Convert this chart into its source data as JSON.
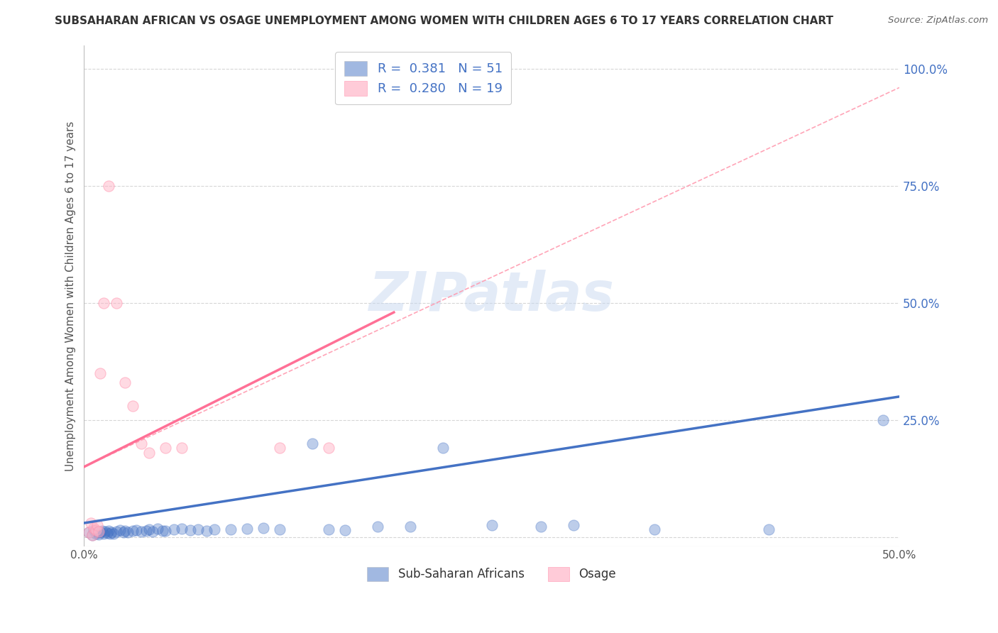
{
  "title": "SUBSAHARAN AFRICAN VS OSAGE UNEMPLOYMENT AMONG WOMEN WITH CHILDREN AGES 6 TO 17 YEARS CORRELATION CHART",
  "source": "Source: ZipAtlas.com",
  "ylabel": "Unemployment Among Women with Children Ages 6 to 17 years",
  "xlim": [
    0.0,
    0.5
  ],
  "ylim": [
    -0.02,
    1.05
  ],
  "xticks": [
    0.0,
    0.1,
    0.2,
    0.3,
    0.4,
    0.5
  ],
  "xticklabels": [
    "0.0%",
    "",
    "",
    "",
    "",
    "50.0%"
  ],
  "yticks": [
    0.0,
    0.25,
    0.5,
    0.75,
    1.0
  ],
  "yticklabels": [
    "",
    "25.0%",
    "50.0%",
    "75.0%",
    "100.0%"
  ],
  "watermark": "ZIPatlas",
  "legend_v1": "0.381",
  "legend_nv1": "51",
  "legend_v2": "0.280",
  "legend_nv2": "19",
  "blue_color": "#4472C4",
  "pink_color": "#FFB6C8",
  "pink_edge_color": "#FF8FAB",
  "pink_line_color": "#FF7096",
  "blue_line_color": "#4472C4",
  "dash_line_color": "#FF9BB0",
  "grid_color": "#CCCCCC",
  "title_color": "#333333",
  "axis_label_color": "#555555",
  "legend_text_color": "#4472C4",
  "blue_scatter": [
    [
      0.003,
      0.01
    ],
    [
      0.005,
      0.005
    ],
    [
      0.006,
      0.015
    ],
    [
      0.007,
      0.008
    ],
    [
      0.008,
      0.012
    ],
    [
      0.009,
      0.006
    ],
    [
      0.01,
      0.01
    ],
    [
      0.011,
      0.014
    ],
    [
      0.012,
      0.007
    ],
    [
      0.013,
      0.012
    ],
    [
      0.014,
      0.009
    ],
    [
      0.015,
      0.013
    ],
    [
      0.016,
      0.007
    ],
    [
      0.017,
      0.011
    ],
    [
      0.018,
      0.008
    ],
    [
      0.02,
      0.012
    ],
    [
      0.022,
      0.015
    ],
    [
      0.024,
      0.01
    ],
    [
      0.025,
      0.013
    ],
    [
      0.027,
      0.011
    ],
    [
      0.03,
      0.013
    ],
    [
      0.032,
      0.015
    ],
    [
      0.035,
      0.012
    ],
    [
      0.038,
      0.014
    ],
    [
      0.04,
      0.016
    ],
    [
      0.042,
      0.012
    ],
    [
      0.045,
      0.018
    ],
    [
      0.048,
      0.014
    ],
    [
      0.05,
      0.013
    ],
    [
      0.055,
      0.016
    ],
    [
      0.06,
      0.018
    ],
    [
      0.065,
      0.015
    ],
    [
      0.07,
      0.016
    ],
    [
      0.075,
      0.014
    ],
    [
      0.08,
      0.017
    ],
    [
      0.09,
      0.016
    ],
    [
      0.1,
      0.018
    ],
    [
      0.11,
      0.019
    ],
    [
      0.12,
      0.016
    ],
    [
      0.14,
      0.2
    ],
    [
      0.15,
      0.016
    ],
    [
      0.16,
      0.015
    ],
    [
      0.18,
      0.022
    ],
    [
      0.2,
      0.022
    ],
    [
      0.22,
      0.19
    ],
    [
      0.25,
      0.025
    ],
    [
      0.28,
      0.022
    ],
    [
      0.3,
      0.025
    ],
    [
      0.35,
      0.016
    ],
    [
      0.42,
      0.016
    ],
    [
      0.49,
      0.25
    ]
  ],
  "pink_scatter": [
    [
      0.003,
      0.01
    ],
    [
      0.004,
      0.03
    ],
    [
      0.005,
      0.005
    ],
    [
      0.006,
      0.02
    ],
    [
      0.007,
      0.015
    ],
    [
      0.008,
      0.025
    ],
    [
      0.009,
      0.012
    ],
    [
      0.01,
      0.35
    ],
    [
      0.012,
      0.5
    ],
    [
      0.015,
      0.75
    ],
    [
      0.02,
      0.5
    ],
    [
      0.025,
      0.33
    ],
    [
      0.03,
      0.28
    ],
    [
      0.035,
      0.2
    ],
    [
      0.04,
      0.18
    ],
    [
      0.05,
      0.19
    ],
    [
      0.06,
      0.19
    ],
    [
      0.12,
      0.19
    ],
    [
      0.15,
      0.19
    ]
  ],
  "blue_trend_x": [
    0.0,
    0.5
  ],
  "blue_trend_y": [
    0.03,
    0.3
  ],
  "pink_trend_x": [
    0.0,
    0.19
  ],
  "pink_trend_y": [
    0.15,
    0.48
  ],
  "dash_trend_x": [
    0.0,
    0.5
  ],
  "dash_trend_y": [
    0.15,
    0.96
  ]
}
